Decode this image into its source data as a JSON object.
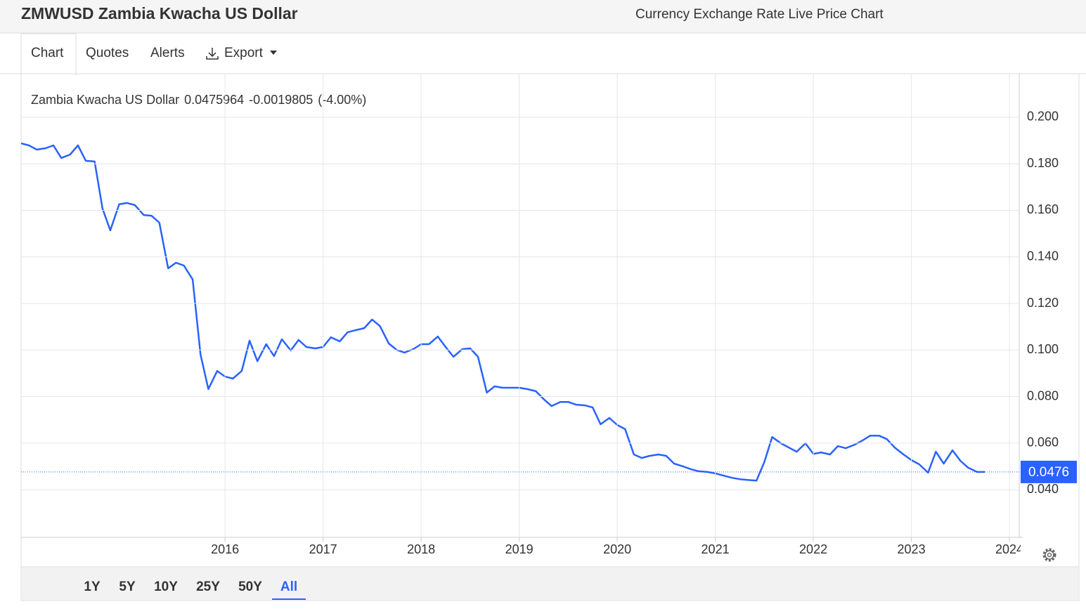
{
  "header": {
    "title": "ZMWUSD Zambia Kwacha US Dollar",
    "subtitle": "Currency Exchange Rate Live Price Chart"
  },
  "tabs": [
    "Chart",
    "Quotes",
    "Alerts",
    "Export"
  ],
  "ranges": [
    "1Y",
    "5Y",
    "10Y",
    "25Y",
    "50Y",
    "All"
  ],
  "chart_data": {
    "type": "line",
    "quote": {
      "price": "0.0475964",
      "change": "-0.0019805",
      "change_pct": "(-4.00%)"
    },
    "current": 0.0476,
    "x": [
      2013.92,
      2014.0,
      2014.08,
      2014.17,
      2014.25,
      2014.33,
      2014.42,
      2014.5,
      2014.58,
      2014.67,
      2014.75,
      2014.83,
      2014.92,
      2015.0,
      2015.08,
      2015.17,
      2015.25,
      2015.33,
      2015.42,
      2015.5,
      2015.58,
      2015.67,
      2015.75,
      2015.83,
      2015.92,
      2016.0,
      2016.08,
      2016.17,
      2016.25,
      2016.33,
      2016.42,
      2016.5,
      2016.58,
      2016.67,
      2016.75,
      2016.83,
      2016.92,
      2017.0,
      2017.08,
      2017.17,
      2017.25,
      2017.33,
      2017.42,
      2017.5,
      2017.58,
      2017.67,
      2017.75,
      2017.83,
      2017.92,
      2018.0,
      2018.08,
      2018.17,
      2018.25,
      2018.33,
      2018.42,
      2018.5,
      2018.58,
      2018.67,
      2018.75,
      2018.83,
      2018.92,
      2019.0,
      2019.08,
      2019.17,
      2019.25,
      2019.33,
      2019.42,
      2019.5,
      2019.58,
      2019.67,
      2019.75,
      2019.83,
      2019.92,
      2020.0,
      2020.08,
      2020.17,
      2020.25,
      2020.33,
      2020.42,
      2020.5,
      2020.58,
      2020.67,
      2020.75,
      2020.83,
      2020.92,
      2021.0,
      2021.08,
      2021.17,
      2021.25,
      2021.33,
      2021.42,
      2021.5,
      2021.58,
      2021.67,
      2021.75,
      2021.83,
      2021.92,
      2022.0,
      2022.08,
      2022.17,
      2022.25,
      2022.33,
      2022.42,
      2022.5,
      2022.58,
      2022.67,
      2022.75,
      2022.83,
      2022.92,
      2023.0,
      2023.08,
      2023.17,
      2023.25,
      2023.33,
      2023.42,
      2023.5,
      2023.58,
      2023.67,
      2023.75
    ],
    "series": [
      {
        "name": "Zambia Kwacha US Dollar",
        "color": "#2962ff",
        "values": [
          0.1888,
          0.1879,
          0.1861,
          0.1867,
          0.1879,
          0.1825,
          0.184,
          0.1879,
          0.1813,
          0.181,
          0.1608,
          0.1514,
          0.1626,
          0.1632,
          0.1623,
          0.158,
          0.1577,
          0.1547,
          0.1351,
          0.1375,
          0.1363,
          0.1303,
          0.098,
          0.0832,
          0.091,
          0.0886,
          0.0877,
          0.091,
          0.104,
          0.0952,
          0.1025,
          0.0974,
          0.1046,
          0.0998,
          0.1043,
          0.1013,
          0.1007,
          0.1013,
          0.1055,
          0.1037,
          0.1076,
          0.1085,
          0.1094,
          0.1131,
          0.1103,
          0.1028,
          0.1001,
          0.0989,
          0.1004,
          0.1025,
          0.1025,
          0.1058,
          0.1013,
          0.0971,
          0.1004,
          0.1007,
          0.0971,
          0.0817,
          0.0844,
          0.0838,
          0.0838,
          0.0838,
          0.0832,
          0.0823,
          0.0789,
          0.0759,
          0.0777,
          0.0777,
          0.0765,
          0.0762,
          0.0753,
          0.0681,
          0.0708,
          0.0678,
          0.066,
          0.0551,
          0.0536,
          0.0545,
          0.0551,
          0.0545,
          0.0512,
          0.05,
          0.0488,
          0.0479,
          0.0476,
          0.047,
          0.0461,
          0.0451,
          0.0445,
          0.0442,
          0.0439,
          0.0518,
          0.0626,
          0.0599,
          0.0581,
          0.0563,
          0.0599,
          0.0554,
          0.056,
          0.0551,
          0.0587,
          0.0578,
          0.0593,
          0.0611,
          0.0632,
          0.0632,
          0.0617,
          0.0581,
          0.0551,
          0.0527,
          0.0509,
          0.0473,
          0.0563,
          0.0512,
          0.0569,
          0.0524,
          0.0494,
          0.0476,
          0.0476
        ]
      }
    ],
    "xlim": [
      2013.92,
      2024.1
    ],
    "xticks": [
      2016,
      2017,
      2018,
      2019,
      2020,
      2021,
      2022,
      2023,
      2024
    ],
    "ylim": [
      0.0195,
      0.2187
    ],
    "yticks": [
      {
        "value": 0.2,
        "label": "0.200"
      },
      {
        "value": 0.18,
        "label": "0.180"
      },
      {
        "value": 0.16,
        "label": "0.160"
      },
      {
        "value": 0.14,
        "label": "0.140"
      },
      {
        "value": 0.12,
        "label": "0.120"
      },
      {
        "value": 0.1,
        "label": "0.100"
      },
      {
        "value": 0.08,
        "label": "0.080"
      },
      {
        "value": 0.06,
        "label": "0.060"
      },
      {
        "value": 0.04,
        "label": "0.040"
      }
    ],
    "grid": true
  }
}
